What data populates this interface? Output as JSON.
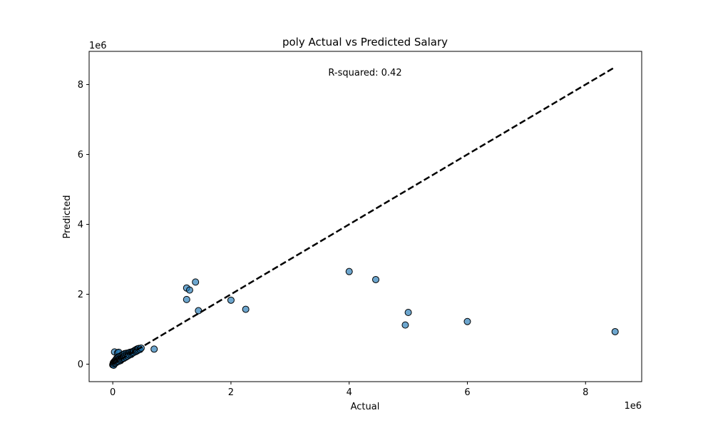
{
  "chart_data": {
    "type": "scatter",
    "title": "poly Actual vs Predicted Salary",
    "xlabel": "Actual",
    "ylabel": "Predicted",
    "x_offset_label": "1e6",
    "y_offset_label": "1e6",
    "xlim": [
      -400000,
      8950000
    ],
    "ylim": [
      -500000,
      8950000
    ],
    "xticks": [
      0,
      2000000,
      4000000,
      6000000,
      8000000
    ],
    "xtick_labels": [
      "0",
      "2",
      "4",
      "6",
      "8"
    ],
    "yticks": [
      0,
      2000000,
      4000000,
      6000000,
      8000000
    ],
    "ytick_labels": [
      "0",
      "2",
      "4",
      "6",
      "8"
    ],
    "grid": false,
    "annotation": "R-squared: 0.42",
    "reference_line": {
      "x": [
        0,
        8500000
      ],
      "y": [
        0,
        8500000
      ],
      "style": "dashed",
      "color": "#000000"
    },
    "point_color": "#1f77b4",
    "points": [
      [
        30000,
        350000
      ],
      [
        80000,
        320000
      ],
      [
        100000,
        340000
      ],
      [
        0,
        -20000
      ],
      [
        5000,
        10000
      ],
      [
        10000,
        40000
      ],
      [
        15000,
        -30000
      ],
      [
        20000,
        60000
      ],
      [
        25000,
        20000
      ],
      [
        30000,
        80000
      ],
      [
        35000,
        50000
      ],
      [
        40000,
        100000
      ],
      [
        45000,
        30000
      ],
      [
        50000,
        120000
      ],
      [
        55000,
        70000
      ],
      [
        60000,
        150000
      ],
      [
        65000,
        90000
      ],
      [
        70000,
        60000
      ],
      [
        75000,
        180000
      ],
      [
        80000,
        110000
      ],
      [
        85000,
        90000
      ],
      [
        90000,
        200000
      ],
      [
        95000,
        130000
      ],
      [
        100000,
        80000
      ],
      [
        105000,
        160000
      ],
      [
        110000,
        220000
      ],
      [
        115000,
        120000
      ],
      [
        120000,
        140000
      ],
      [
        125000,
        190000
      ],
      [
        130000,
        100000
      ],
      [
        135000,
        240000
      ],
      [
        140000,
        160000
      ],
      [
        145000,
        130000
      ],
      [
        150000,
        210000
      ],
      [
        155000,
        170000
      ],
      [
        160000,
        260000
      ],
      [
        165000,
        150000
      ],
      [
        170000,
        200000
      ],
      [
        175000,
        180000
      ],
      [
        180000,
        280000
      ],
      [
        185000,
        220000
      ],
      [
        190000,
        170000
      ],
      [
        195000,
        240000
      ],
      [
        200000,
        300000
      ],
      [
        210000,
        250000
      ],
      [
        220000,
        200000
      ],
      [
        230000,
        310000
      ],
      [
        240000,
        270000
      ],
      [
        250000,
        230000
      ],
      [
        260000,
        320000
      ],
      [
        270000,
        290000
      ],
      [
        280000,
        260000
      ],
      [
        290000,
        340000
      ],
      [
        300000,
        300000
      ],
      [
        310000,
        280000
      ],
      [
        320000,
        350000
      ],
      [
        330000,
        310000
      ],
      [
        340000,
        360000
      ],
      [
        350000,
        330000
      ],
      [
        360000,
        380000
      ],
      [
        380000,
        400000
      ],
      [
        390000,
        360000
      ],
      [
        400000,
        420000
      ],
      [
        410000,
        380000
      ],
      [
        420000,
        440000
      ],
      [
        430000,
        400000
      ],
      [
        440000,
        450000
      ],
      [
        460000,
        420000
      ],
      [
        480000,
        460000
      ],
      [
        700000,
        430000
      ],
      [
        1250000,
        2180000
      ],
      [
        1250000,
        1850000
      ],
      [
        1300000,
        2120000
      ],
      [
        1400000,
        2350000
      ],
      [
        1450000,
        1530000
      ],
      [
        2000000,
        1830000
      ],
      [
        2250000,
        1570000
      ],
      [
        4000000,
        2650000
      ],
      [
        4450000,
        2420000
      ],
      [
        4950000,
        1120000
      ],
      [
        5000000,
        1480000
      ],
      [
        6000000,
        1220000
      ],
      [
        8500000,
        930000
      ]
    ]
  }
}
